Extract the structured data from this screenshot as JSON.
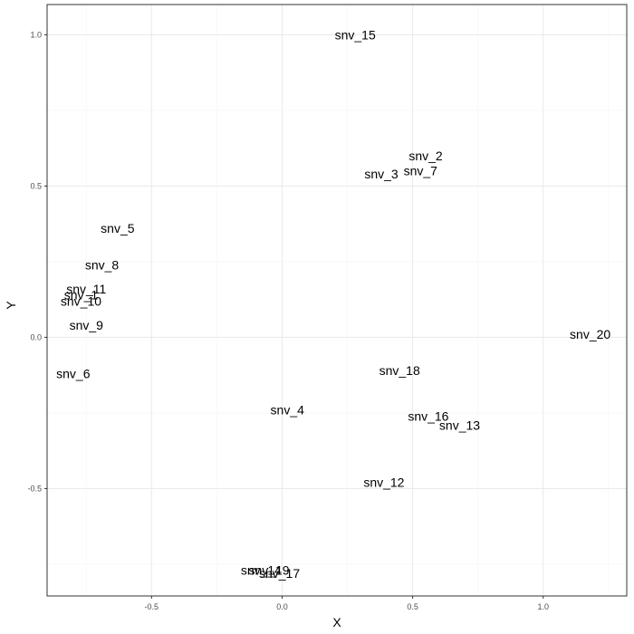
{
  "chart_data": {
    "type": "scatter",
    "title": "",
    "xlabel": "X",
    "ylabel": "Y",
    "xlim": [
      -0.9,
      1.32
    ],
    "ylim": [
      -0.855,
      1.1
    ],
    "x_ticks": [
      -0.5,
      0.0,
      0.5,
      1.0
    ],
    "x_tick_labels": [
      "-0.5",
      "0.0",
      "0.5",
      "1.0"
    ],
    "y_ticks": [
      -0.5,
      0.0,
      0.5,
      1.0
    ],
    "y_tick_labels": [
      "-0.5",
      "0.0",
      "0.5",
      "1.0"
    ],
    "grid": true,
    "legend": "none",
    "marker": "text",
    "points": [
      {
        "label": "snv_15",
        "x": 0.28,
        "y": 1.0
      },
      {
        "label": "snv_2",
        "x": 0.55,
        "y": 0.6
      },
      {
        "label": "snv_7",
        "x": 0.53,
        "y": 0.55
      },
      {
        "label": "snv_3",
        "x": 0.38,
        "y": 0.54
      },
      {
        "label": "snv_5",
        "x": -0.63,
        "y": 0.36
      },
      {
        "label": "snv_8",
        "x": -0.69,
        "y": 0.24
      },
      {
        "label": "snv_11",
        "x": -0.75,
        "y": 0.16
      },
      {
        "label": "snv_1",
        "x": -0.77,
        "y": 0.14
      },
      {
        "label": "snv_10",
        "x": -0.77,
        "y": 0.12
      },
      {
        "label": "snv_9",
        "x": -0.75,
        "y": 0.04
      },
      {
        "label": "snv_20",
        "x": 1.18,
        "y": 0.01
      },
      {
        "label": "snv_18",
        "x": 0.45,
        "y": -0.11
      },
      {
        "label": "snv_6",
        "x": -0.8,
        "y": -0.12
      },
      {
        "label": "snv_4",
        "x": 0.02,
        "y": -0.24
      },
      {
        "label": "snv_16",
        "x": 0.56,
        "y": -0.26
      },
      {
        "label": "snv_13",
        "x": 0.68,
        "y": -0.29
      },
      {
        "label": "snv_12",
        "x": 0.39,
        "y": -0.48
      },
      {
        "label": "snv_19",
        "x": -0.05,
        "y": -0.77
      },
      {
        "label": "snv_14",
        "x": -0.08,
        "y": -0.77
      },
      {
        "label": "snv_17",
        "x": -0.01,
        "y": -0.78
      }
    ],
    "colors": {
      "panel_background": "#ffffff",
      "panel_border": "#333333",
      "grid_major": "#ebebeb",
      "grid_minor": "#f5f5f5",
      "tick": "#333333",
      "tick_label": "#4d4d4d",
      "text": "#000000"
    }
  }
}
